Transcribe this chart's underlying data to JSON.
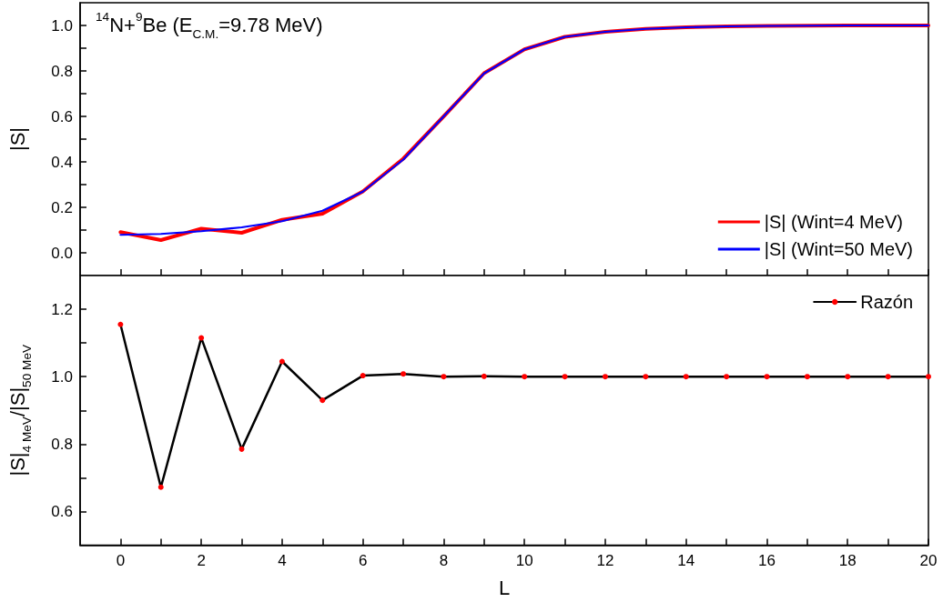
{
  "chart_data": [
    {
      "type": "line",
      "title": "$^{14}$N+$^{9}$Be (E$_{C.M.}$=9.78 MeV)",
      "ylabel": "|S|",
      "x": [
        0,
        1,
        2,
        3,
        4,
        5,
        6,
        7,
        8,
        9,
        10,
        11,
        12,
        13,
        14,
        15,
        16,
        17,
        18,
        19,
        20
      ],
      "series": [
        {
          "name": "|S| (Wint=4 MeV)",
          "color": "#ff0000",
          "values": [
            0.091,
            0.056,
            0.106,
            0.088,
            0.145,
            0.172,
            0.27,
            0.414,
            0.6,
            0.79,
            0.895,
            0.95,
            0.972,
            0.985,
            0.992,
            0.996,
            0.998,
            0.999,
            1.0,
            1.0,
            1.0
          ]
        },
        {
          "name": "|S| (Wint=50 MeV)",
          "color": "#0000ff",
          "values": [
            0.079,
            0.083,
            0.095,
            0.112,
            0.139,
            0.185,
            0.269,
            0.41,
            0.6,
            0.789,
            0.895,
            0.95,
            0.972,
            0.985,
            0.992,
            0.996,
            0.998,
            0.999,
            1.0,
            1.0,
            1.0
          ]
        }
      ],
      "xlim": [
        -1,
        20
      ],
      "xticks": [
        0,
        {
          "value": 1,
          "label": null
        },
        2,
        {
          "value": 3,
          "label": null
        },
        4,
        {
          "value": 5,
          "label": null
        },
        6,
        {
          "value": 7,
          "label": null
        },
        8,
        {
          "value": 9,
          "label": null
        },
        10,
        {
          "value": 11,
          "label": null
        },
        12,
        {
          "value": 13,
          "label": null
        },
        14,
        {
          "value": 15,
          "label": null
        },
        16,
        {
          "value": 17,
          "label": null
        },
        18,
        {
          "value": 19,
          "label": null
        },
        20
      ],
      "ylim": [
        -0.1,
        1.1
      ],
      "yticks": [
        {
          "value": 0,
          "label": "0.0"
        },
        {
          "value": 0.1,
          "label": null
        },
        0.2,
        {
          "value": 0.3,
          "label": null
        },
        0.4,
        {
          "value": 0.5,
          "label": null
        },
        0.6,
        {
          "value": 0.7,
          "label": null
        },
        0.8,
        {
          "value": 0.9,
          "label": null
        },
        {
          "value": 1,
          "label": "1.0"
        }
      ],
      "tick_labels": "y",
      "legend": "bottom right",
      "marker": "none",
      "line_style": "solid"
    },
    {
      "type": "line",
      "xlabel": "L",
      "ylabel": "|S|$_{4 MeV}$/|S|$_{50 MeV}$",
      "x": [
        0,
        1,
        2,
        3,
        4,
        5,
        6,
        7,
        8,
        9,
        10,
        11,
        12,
        13,
        14,
        15,
        16,
        17,
        18,
        19,
        20
      ],
      "series": [
        {
          "name": "Razón",
          "color": "#000000",
          "colors": [
            "#ff0000",
            "#ff0000",
            "#ff0000",
            "#ff0000",
            "#ff0000",
            "#ff0000",
            "#ff0000",
            "#ff0000",
            "#ff0000",
            "#ff0000",
            "#ff0000",
            "#ff0000",
            "#ff0000",
            "#ff0000",
            "#ff0000",
            "#ff0000",
            "#ff0000",
            "#ff0000",
            "#ff0000",
            "#ff0000",
            "#ff0000"
          ],
          "values": [
            1.155,
            0.672,
            1.115,
            0.785,
            1.045,
            0.93,
            1.003,
            1.008,
            1.0,
            1.001,
            1.0,
            1.0,
            1.0,
            1.0,
            1.0,
            1.0,
            1.0,
            1.0,
            1.0,
            1.0,
            1.0
          ]
        }
      ],
      "xlim": [
        -1,
        20
      ],
      "xticks": [
        0,
        {
          "value": 1,
          "label": null
        },
        2,
        {
          "value": 3,
          "label": null
        },
        4,
        {
          "value": 5,
          "label": null
        },
        6,
        {
          "value": 7,
          "label": null
        },
        8,
        {
          "value": 9,
          "label": null
        },
        10,
        {
          "value": 11,
          "label": null
        },
        12,
        {
          "value": 13,
          "label": null
        },
        14,
        {
          "value": 15,
          "label": null
        },
        16,
        {
          "value": 17,
          "label": null
        },
        18,
        {
          "value": 19,
          "label": null
        },
        20
      ],
      "ylim": [
        0.5,
        1.3
      ],
      "yticks": [
        0.6,
        {
          "value": 0.7,
          "label": null
        },
        0.8,
        {
          "value": 0.9,
          "label": null
        },
        {
          "value": 1,
          "label": "1.0"
        },
        {
          "value": 1.1,
          "label": null
        },
        1.2
      ],
      "legend": "top right",
      "marker": "circle",
      "line_style": "solid"
    }
  ]
}
